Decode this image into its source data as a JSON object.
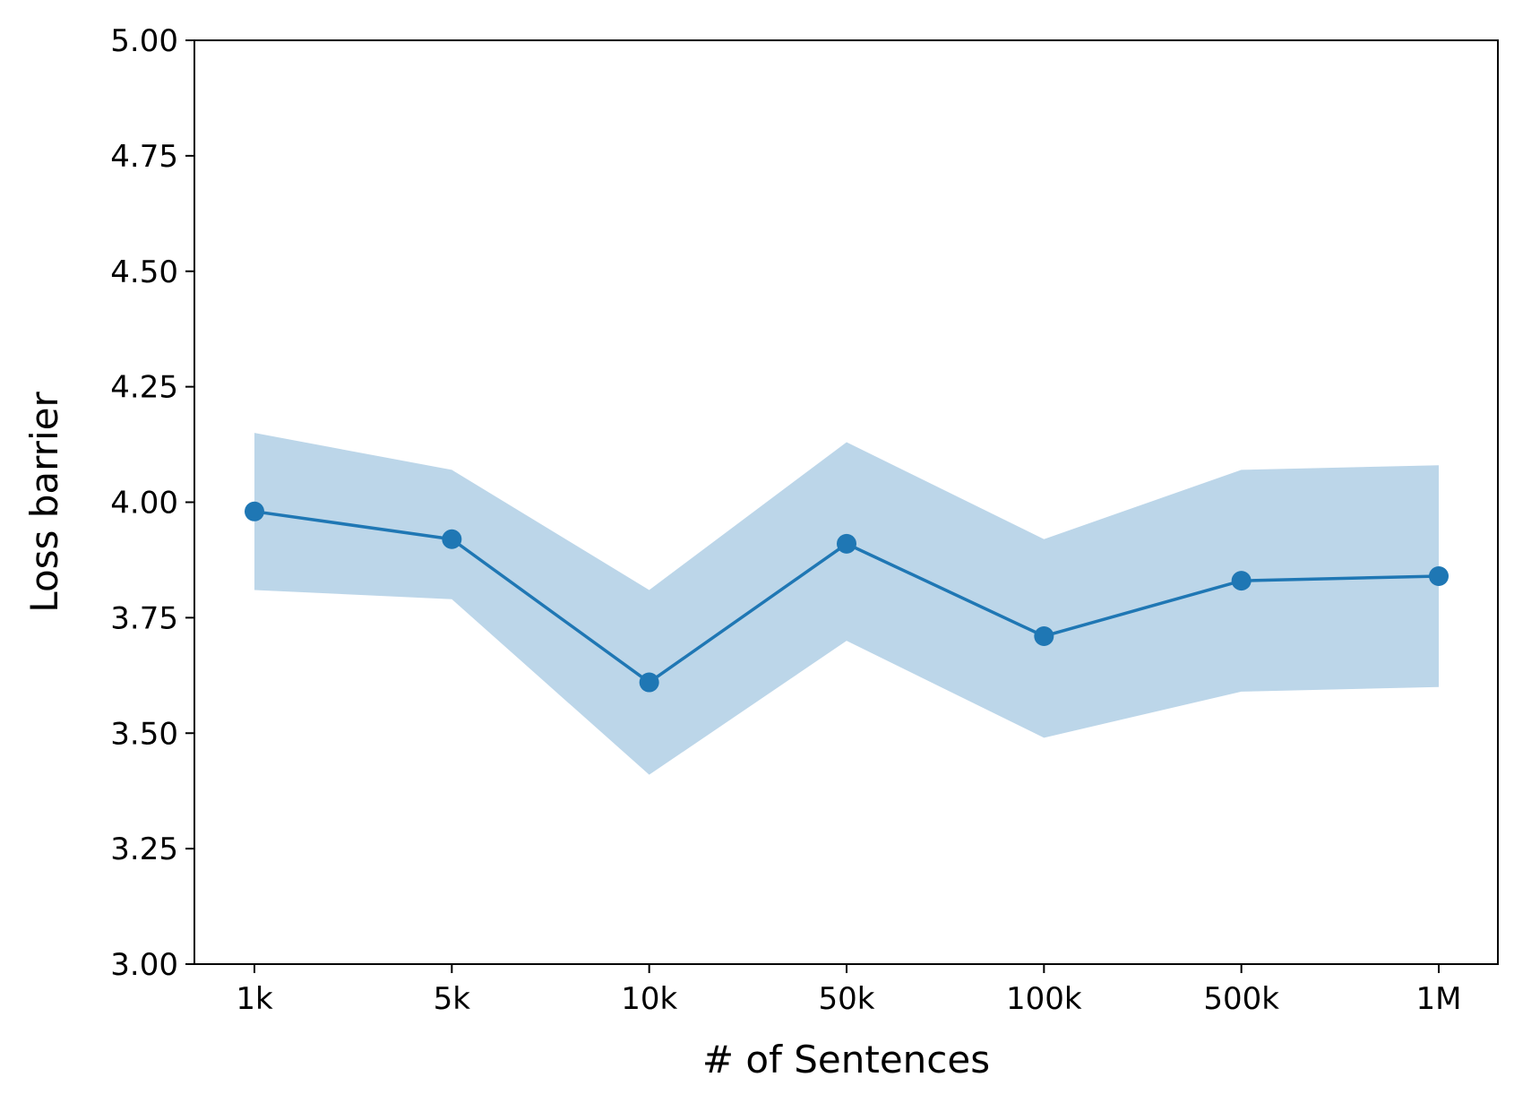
{
  "chart_data": {
    "type": "line",
    "xlabel": "# of Sentences",
    "ylabel": "Loss barrier",
    "categories": [
      "1k",
      "5k",
      "10k",
      "50k",
      "100k",
      "500k",
      "1M"
    ],
    "ylim": [
      3.0,
      5.0
    ],
    "yticks": [
      "3.00",
      "3.25",
      "3.50",
      "3.75",
      "4.00",
      "4.25",
      "4.50",
      "4.75",
      "5.00"
    ],
    "grid": false,
    "series": [
      {
        "values": [
          3.98,
          3.92,
          3.61,
          3.91,
          3.71,
          3.83,
          3.84
        ],
        "upper": [
          4.15,
          4.07,
          3.81,
          4.13,
          3.92,
          4.07,
          4.08
        ],
        "lower": [
          3.81,
          3.79,
          3.41,
          3.7,
          3.49,
          3.59,
          3.6
        ],
        "color": "#1f77b4",
        "band_color": "#bcd6e9"
      }
    ]
  }
}
